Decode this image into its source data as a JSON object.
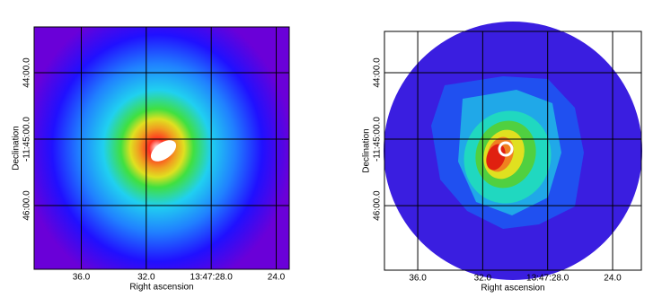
{
  "chart_data": [
    {
      "type": "image",
      "xlabel": "Right ascension",
      "ylabel": "Declination",
      "xlim": [
        38.9,
        23.2
      ],
      "ylim": [
        46.96,
        43.31
      ],
      "xticks": [
        {
          "value": 36,
          "label": "36.0"
        },
        {
          "value": 32,
          "label": "32.0"
        },
        {
          "value": 28,
          "label": "13:47:28.0"
        },
        {
          "value": 24,
          "label": "24.0"
        }
      ],
      "yticks": [
        {
          "value": 44,
          "label": "44:00.0"
        },
        {
          "value": 45,
          "label": "-11:45:00.0"
        },
        {
          "value": 46,
          "label": "46:00.0"
        }
      ],
      "grid": true
    },
    {
      "type": "image",
      "xlabel": "Right ascension",
      "ylabel": "Declination",
      "xlim": [
        38.05,
        22.23
      ],
      "ylim": [
        46.97,
        43.38
      ],
      "xticks": [
        {
          "value": 36,
          "label": "36.0"
        },
        {
          "value": 32,
          "label": "32.0"
        },
        {
          "value": 28,
          "label": "13:47:28.0"
        },
        {
          "value": 24,
          "label": "24.0"
        }
      ],
      "yticks": [
        {
          "value": 44,
          "label": "44:00.0"
        },
        {
          "value": 45,
          "label": "-11:45:00.0"
        },
        {
          "value": 46,
          "label": "46:00.0"
        }
      ],
      "grid": true
    }
  ]
}
